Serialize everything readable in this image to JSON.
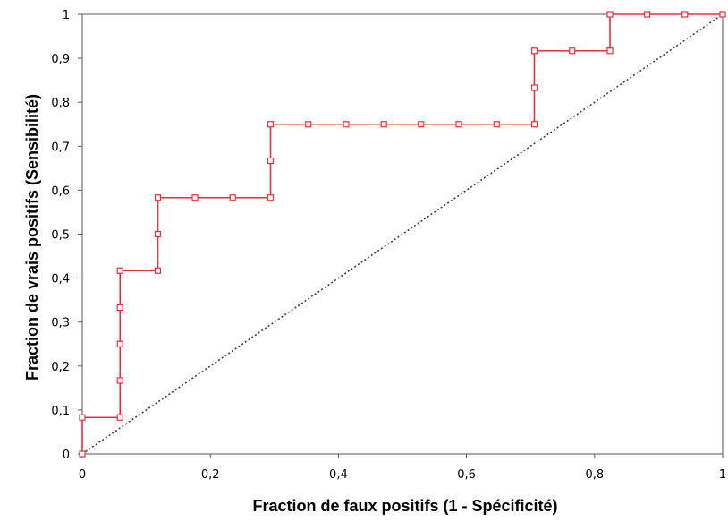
{
  "chart_data": {
    "type": "line",
    "title": "",
    "xlabel": "Fraction  de faux positifs (1 - Spécificité)",
    "ylabel": "Fraction  de vrais positifs  (Sensibilité)",
    "xlim": [
      0,
      1
    ],
    "ylim": [
      0,
      1
    ],
    "x_ticks": [
      "0",
      "0,2",
      "0,4",
      "0,6",
      "0,8",
      "1"
    ],
    "y_ticks": [
      "0",
      "0,1",
      "0,2",
      "0,3",
      "0,4",
      "0,5",
      "0,6",
      "0,7",
      "0,8",
      "0,9",
      "1"
    ],
    "grid": false,
    "series": [
      {
        "style": "step-line-square-markers",
        "color": "#e8303a",
        "points": [
          [
            0,
            0
          ],
          [
            0,
            0.083
          ],
          [
            0.059,
            0.083
          ],
          [
            0.059,
            0.167
          ],
          [
            0.059,
            0.25
          ],
          [
            0.059,
            0.333
          ],
          [
            0.059,
            0.417
          ],
          [
            0.118,
            0.417
          ],
          [
            0.118,
            0.5
          ],
          [
            0.118,
            0.583
          ],
          [
            0.176,
            0.583
          ],
          [
            0.235,
            0.583
          ],
          [
            0.294,
            0.583
          ],
          [
            0.294,
            0.667
          ],
          [
            0.294,
            0.75
          ],
          [
            0.353,
            0.75
          ],
          [
            0.412,
            0.75
          ],
          [
            0.471,
            0.75
          ],
          [
            0.529,
            0.75
          ],
          [
            0.588,
            0.75
          ],
          [
            0.647,
            0.75
          ],
          [
            0.706,
            0.75
          ],
          [
            0.706,
            0.833
          ],
          [
            0.706,
            0.917
          ],
          [
            0.765,
            0.917
          ],
          [
            0.824,
            0.917
          ],
          [
            0.824,
            1.0
          ],
          [
            0.882,
            1.0
          ],
          [
            0.941,
            1.0
          ],
          [
            1.0,
            1.0
          ]
        ]
      },
      {
        "style": "dotted-diagonal",
        "color": "#404040",
        "points": [
          [
            0,
            0
          ],
          [
            1,
            1
          ]
        ]
      }
    ]
  }
}
